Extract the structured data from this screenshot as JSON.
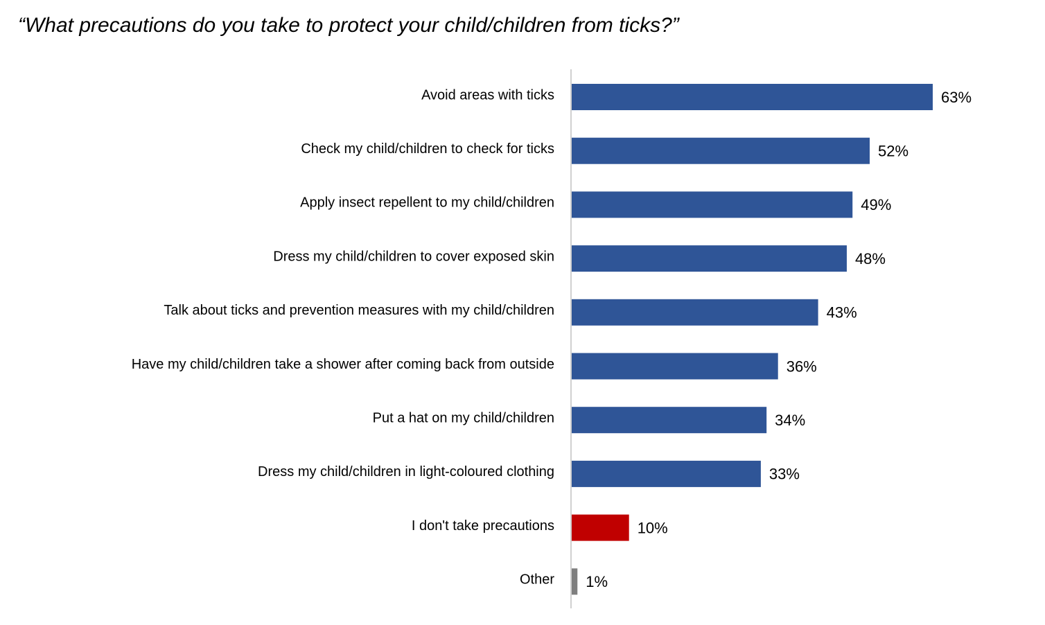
{
  "chart_data": {
    "type": "bar",
    "orientation": "horizontal",
    "title": "“What precautions do you take to protect your child/children from ticks?”",
    "categories": [
      "Avoid areas with ticks",
      "Check my child/children to check for ticks",
      "Apply insect repellent to my child/children",
      "Dress my child/children to cover exposed skin",
      "Talk about ticks and prevention measures with my child/children",
      "Have my child/children take a shower after coming back from outside",
      "Put a hat on my child/children",
      "Dress my child/children in light-coloured clothing",
      "I don't take precautions",
      "Other"
    ],
    "values": [
      63,
      52,
      49,
      48,
      43,
      36,
      34,
      33,
      10,
      1
    ],
    "value_labels": [
      "63%",
      "52%",
      "49%",
      "48%",
      "43%",
      "36%",
      "34%",
      "33%",
      "10%",
      "1%"
    ],
    "colors": [
      "#2f5597",
      "#2f5597",
      "#2f5597",
      "#2f5597",
      "#2f5597",
      "#2f5597",
      "#2f5597",
      "#2f5597",
      "#c00000",
      "#7f7f7f"
    ]
  }
}
